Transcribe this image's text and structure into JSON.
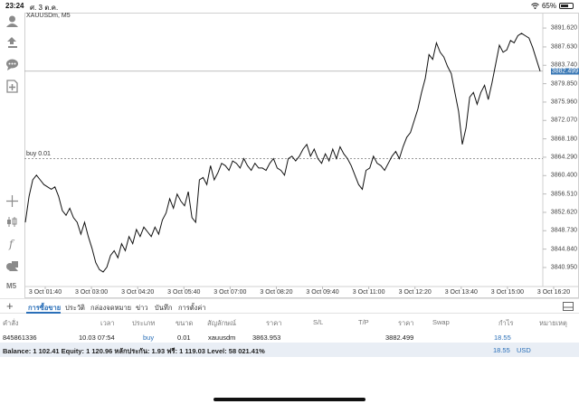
{
  "status_bar": {
    "time": "23:24",
    "date": "ศ. 3 ต.ค.",
    "battery": "65%",
    "battery_level": 0.65
  },
  "chart": {
    "symbol": "XAUUSDm, M5",
    "buy_line_label": "buy 0.01",
    "current_price": "3882.499",
    "price_ticks": [
      "3891.620",
      "3887.630",
      "3883.740",
      "3879.850",
      "3875.960",
      "3872.070",
      "3868.180",
      "3864.290",
      "3860.400",
      "3856.510",
      "3852.620",
      "3848.730",
      "3844.840",
      "3840.950"
    ],
    "time_ticks": [
      "3 Oct 01:40",
      "3 Oct 03:00",
      "3 Oct 04:20",
      "3 Oct 05:40",
      "3 Oct 07:00",
      "3 Oct 08:20",
      "3 Oct 09:40",
      "3 Oct 11:00",
      "3 Oct 12:20",
      "3 Oct 13:40",
      "3 Oct 15:00",
      "3 Oct 16:20"
    ]
  },
  "chart_data": {
    "type": "line",
    "title": "XAUUSDm, M5",
    "series": [
      {
        "values": [
          3850.5,
          3856.0,
          3859.5,
          3860.5,
          3859.5,
          3858.5,
          3858.0,
          3857.5,
          3858.0,
          3856.0,
          3853.0,
          3852.0,
          3853.5,
          3851.5,
          3850.5,
          3848.0,
          3850.5,
          3847.5,
          3845.0,
          3842.0,
          3840.5,
          3840.0,
          3841.0,
          3843.5,
          3844.5,
          3843.0,
          3846.0,
          3844.5,
          3847.5,
          3846.0,
          3849.0,
          3847.5,
          3849.5,
          3848.5,
          3847.5,
          3849.5,
          3848.0,
          3851.0,
          3852.5,
          3855.5,
          3853.5,
          3856.5,
          3855.0,
          3854.0,
          3857.0,
          3851.5,
          3850.5,
          3859.5,
          3860.0,
          3858.5,
          3862.5,
          3859.5,
          3861.0,
          3863.0,
          3862.5,
          3861.5,
          3863.5,
          3863.0,
          3862.0,
          3864.0,
          3862.5,
          3861.5,
          3863.0,
          3862.0,
          3862.0,
          3861.5,
          3863.0,
          3864.0,
          3862.0,
          3861.5,
          3860.5,
          3864.0,
          3864.5,
          3863.5,
          3864.5,
          3866.0,
          3867.0,
          3864.5,
          3866.0,
          3864.0,
          3863.0,
          3865.0,
          3863.5,
          3866.0,
          3864.0,
          3866.5,
          3865.0,
          3864.0,
          3862.5,
          3860.5,
          3858.5,
          3857.5,
          3861.5,
          3862.0,
          3864.5,
          3863.0,
          3862.5,
          3861.5,
          3863.0,
          3864.5,
          3865.5,
          3864.0,
          3866.5,
          3868.5,
          3869.5,
          3872.0,
          3874.5,
          3878.0,
          3881.0,
          3886.0,
          3885.0,
          3888.5,
          3886.5,
          3885.5,
          3883.5,
          3882.0,
          3878.0,
          3874.0,
          3867.0,
          3870.5,
          3877.0,
          3878.0,
          3875.5,
          3878.0,
          3879.5,
          3876.5,
          3880.0,
          3884.0,
          3888.0,
          3886.5,
          3887.0,
          3889.0,
          3888.5,
          3890.0,
          3890.5,
          3890.0,
          3889.5,
          3887.5,
          3885.0,
          3882.5
        ]
      }
    ],
    "ylim": [
      3837.5,
      3894.5
    ],
    "x_ticks": [
      "3 Oct 01:40",
      "3 Oct 03:00",
      "3 Oct 04:20",
      "3 Oct 05:40",
      "3 Oct 07:00",
      "3 Oct 08:20",
      "3 Oct 09:40",
      "3 Oct 11:00",
      "3 Oct 12:20",
      "3 Oct 13:40",
      "3 Oct 15:00",
      "3 Oct 16:20"
    ],
    "buy_level": 3864.0,
    "current_price": 3882.499,
    "grid": false
  },
  "tabs": [
    "การซื้อขาย",
    "ประวัติ",
    "กล่องจดหมาย",
    "ข่าว",
    "บันทึก",
    "การตั้งค่า"
  ],
  "table": {
    "headers": [
      "คำสั่ง",
      "เวลา",
      "ประเภท",
      "ขนาด",
      "สัญลักษณ์",
      "ราคา",
      "S/L",
      "T/P",
      "ราคา",
      "Swap",
      "กำไร",
      "หมายเหตุ"
    ],
    "row": {
      "order": "845861336",
      "time": "10.03 07:54",
      "type": "buy",
      "volume": "0.01",
      "symbol": "xauusdm",
      "open_price": "3863.953",
      "current_price": "3882.499",
      "profit": "18.55"
    }
  },
  "balance_bar": {
    "text": "Balance: 1 102.41 Equity: 1 120.96 หลักประกัน: 1.93 ฟรี: 1 119.03 Level: 58 021.41%",
    "profit": "18.55",
    "currency": "USD"
  },
  "colors": {
    "accent": "#2a6fb8",
    "current_price_bg": "#3a78b5"
  }
}
